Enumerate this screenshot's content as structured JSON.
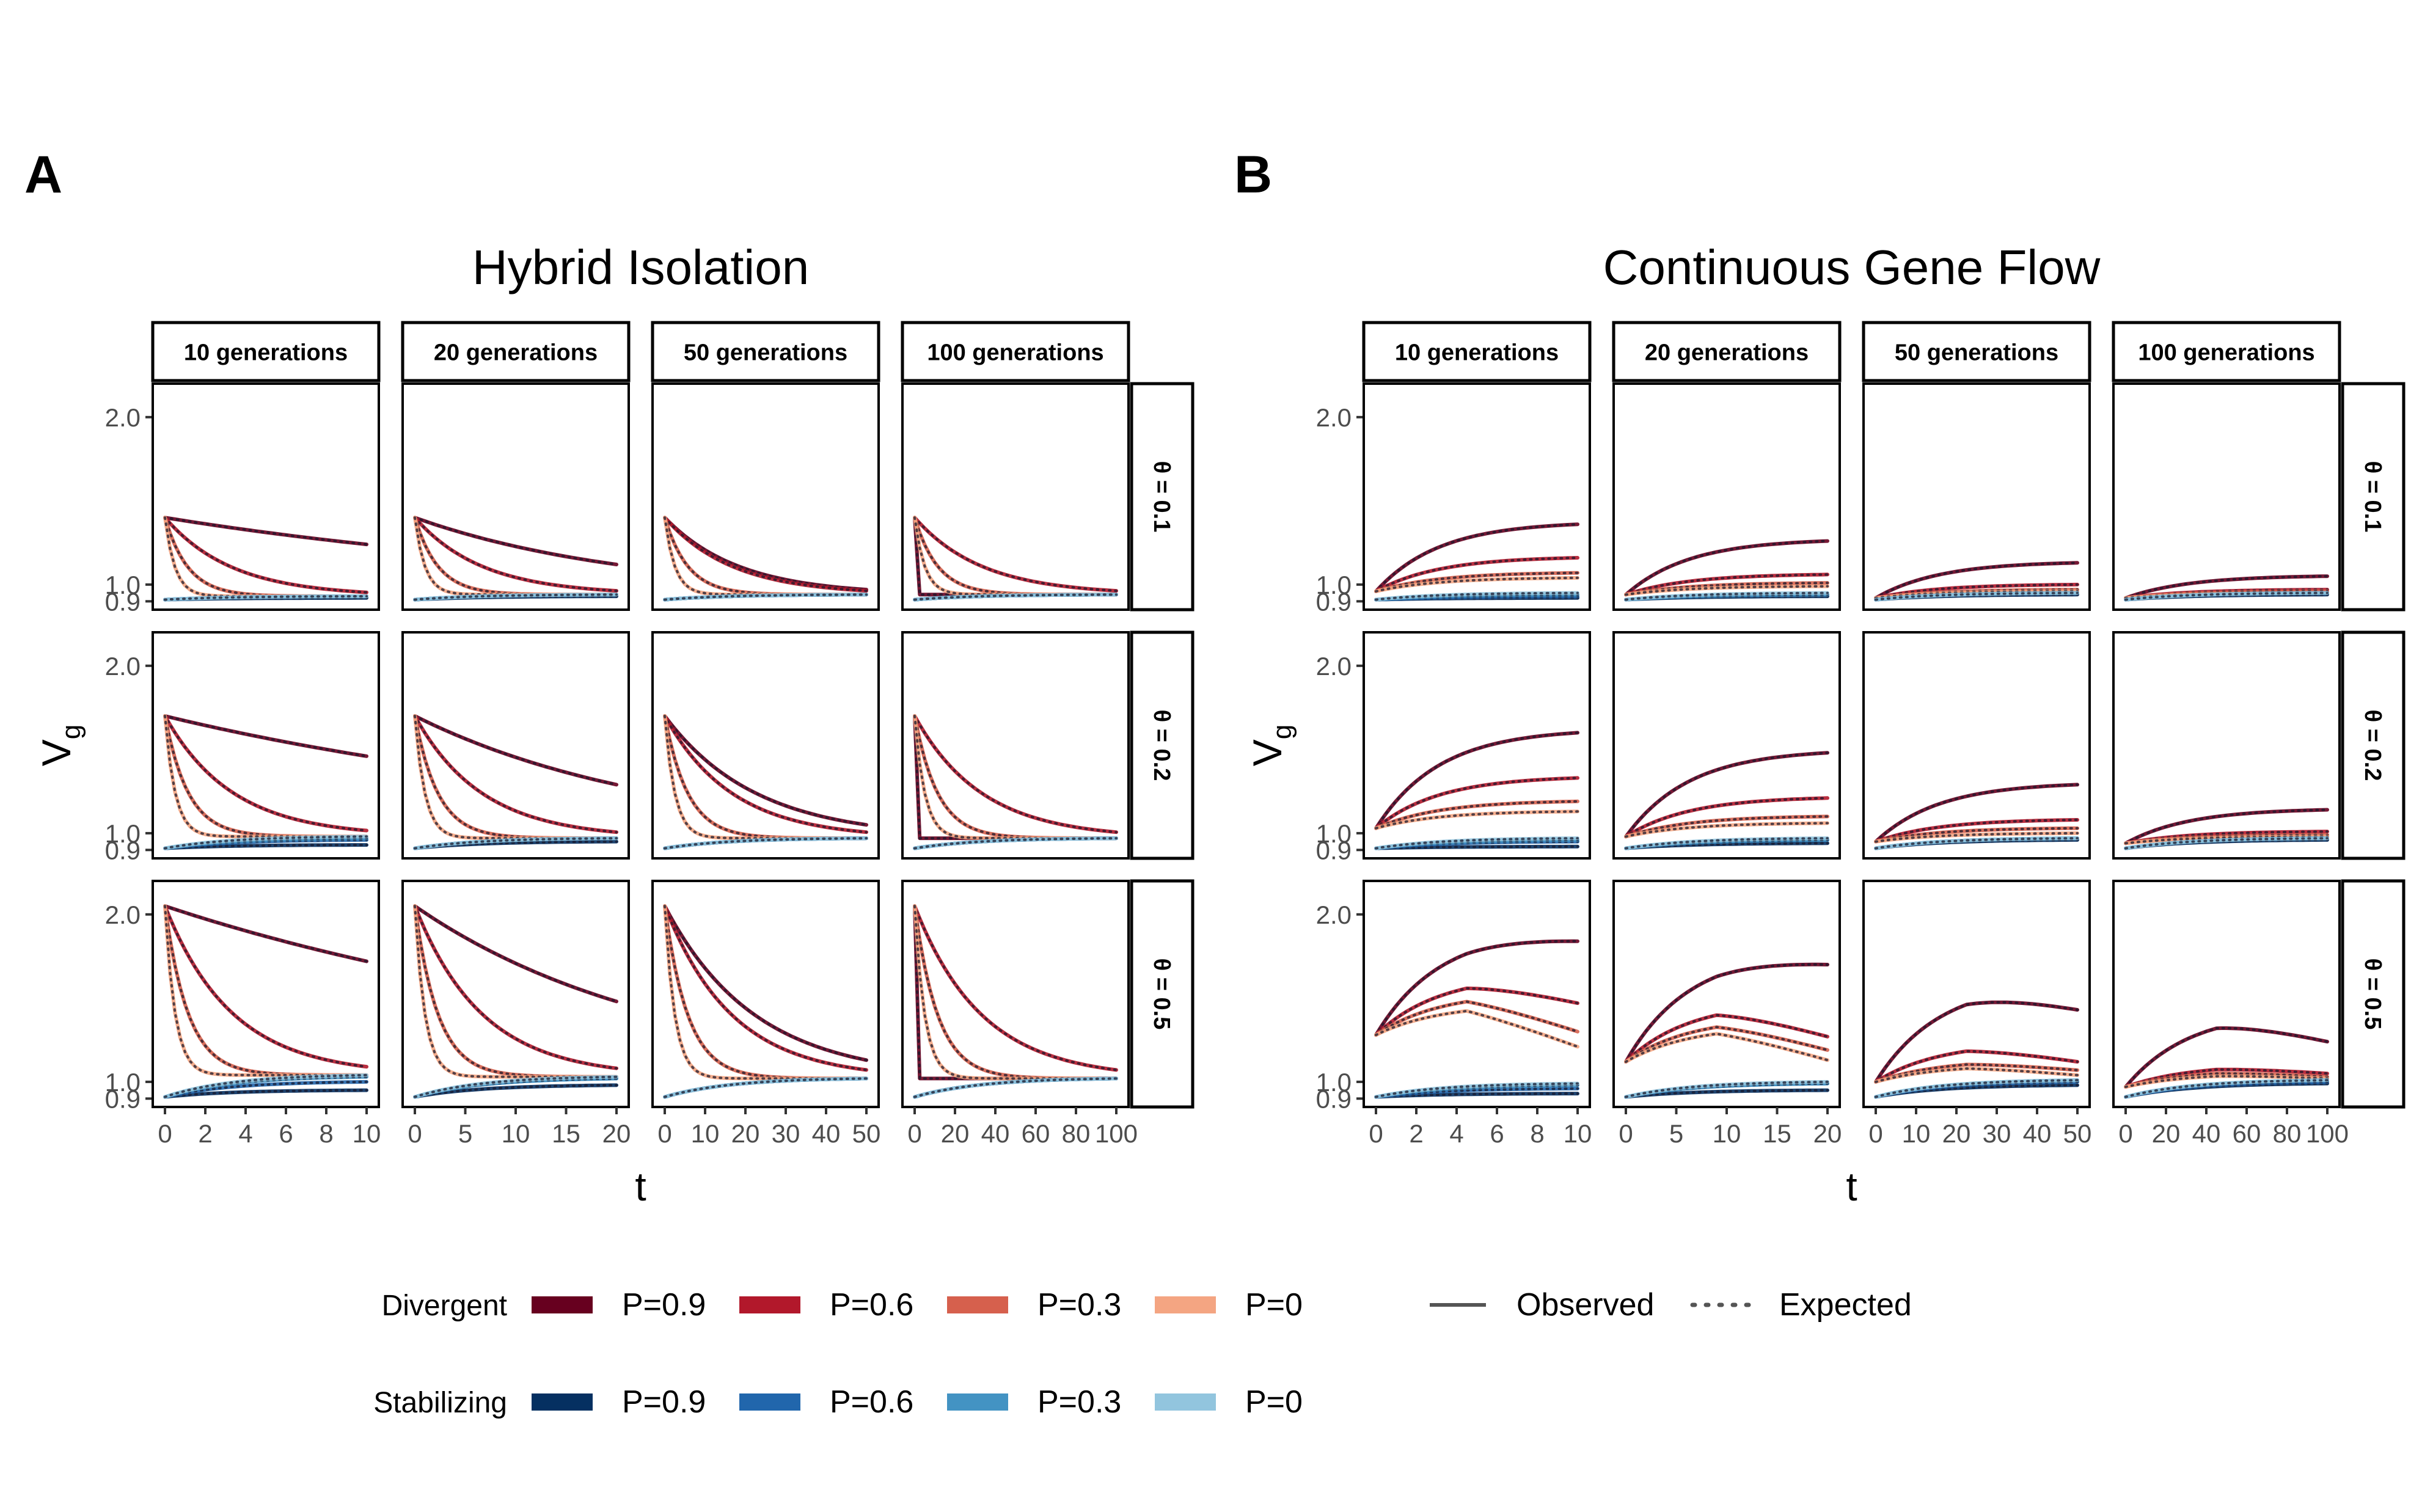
{
  "panel_labels": [
    "A",
    "B"
  ],
  "panel_titles": [
    "Hybrid Isolation",
    "Continuous Gene Flow"
  ],
  "facet_columns": [
    "10 generations",
    "20 generations",
    "50 generations",
    "100 generations"
  ],
  "facet_rows": [
    "θ = 0.1",
    "θ = 0.2",
    "θ = 0.5"
  ],
  "x_label": "t",
  "y_label": "V",
  "y_label_sub": "g",
  "y_ticks": [
    "0.9",
    "1.0",
    "2.0"
  ],
  "x_ticks": [
    [
      "0",
      "2",
      "4",
      "6",
      "8",
      "10"
    ],
    [
      "0",
      "5",
      "10",
      "15",
      "20"
    ],
    [
      "0",
      "10",
      "20",
      "30",
      "40",
      "50"
    ],
    [
      "0",
      "20",
      "40",
      "60",
      "80",
      "100"
    ]
  ],
  "legend": {
    "groups": [
      {
        "title": "Divergent",
        "entries": [
          {
            "label": "P=0.9",
            "color": "#67001f"
          },
          {
            "label": "P=0.6",
            "color": "#b2182b"
          },
          {
            "label": "P=0.3",
            "color": "#d6604d"
          },
          {
            "label": "P=0",
            "color": "#f4a582"
          }
        ]
      },
      {
        "title": "Stabilizing",
        "entries": [
          {
            "label": "P=0.9",
            "color": "#053061"
          },
          {
            "label": "P=0.6",
            "color": "#2166ac"
          },
          {
            "label": "P=0.3",
            "color": "#4393c3"
          },
          {
            "label": "P=0",
            "color": "#92c5de"
          }
        ]
      }
    ],
    "linetypes": [
      {
        "label": "Observed",
        "style": "solid"
      },
      {
        "label": "Expected",
        "style": "dotted"
      }
    ]
  },
  "chart_data": [
    {
      "type": "line",
      "title": "Hybrid Isolation",
      "xlabel": "t",
      "ylabel": "Vg",
      "ylim": [
        0.85,
        2.2
      ],
      "facet_cols": [
        "10 generations",
        "20 generations",
        "50 generations",
        "100 generations"
      ],
      "x_ranges": [
        [
          0,
          10
        ],
        [
          0,
          20
        ],
        [
          0,
          50
        ],
        [
          0,
          100
        ]
      ],
      "facet_rows": [
        "θ = 0.1",
        "θ = 0.2",
        "θ = 0.5"
      ],
      "initial_divergent": [
        1.4,
        1.7,
        2.05
      ],
      "divergent_final": [
        [
          [
            1.24,
            0.99,
            0.95,
            0.94
          ],
          [
            1.12,
            0.95,
            0.94,
            0.94
          ],
          [
            0.97,
            0.94,
            0.94,
            0.94
          ],
          [
            0.94,
            0.94,
            0.94,
            0.94
          ]
        ],
        [
          [
            1.46,
            1.08,
            1.0,
            0.99
          ],
          [
            1.29,
            1.0,
            0.98,
            0.97
          ],
          [
            1.05,
            0.97,
            0.97,
            0.97
          ],
          [
            0.97,
            0.97,
            0.97,
            0.97
          ]
        ],
        [
          [
            1.72,
            1.16,
            1.05,
            1.03
          ],
          [
            1.48,
            1.05,
            1.02,
            1.02
          ],
          [
            1.13,
            1.02,
            1.02,
            1.02
          ],
          [
            1.02,
            1.02,
            1.02,
            1.02
          ]
        ]
      ],
      "stabilizing_initial": 0.91,
      "stabilizing_final": [
        [
          [
            0.92,
            0.93,
            0.93,
            0.93
          ],
          [
            0.93,
            0.94,
            0.94,
            0.94
          ],
          [
            0.94,
            0.94,
            0.94,
            0.94
          ],
          [
            0.94,
            0.94,
            0.94,
            0.94
          ]
        ],
        [
          [
            0.93,
            0.96,
            0.97,
            0.98
          ],
          [
            0.95,
            0.97,
            0.97,
            0.97
          ],
          [
            0.97,
            0.97,
            0.97,
            0.97
          ],
          [
            0.97,
            0.97,
            0.97,
            0.97
          ]
        ],
        [
          [
            0.95,
            1.0,
            1.03,
            1.04
          ],
          [
            0.98,
            1.02,
            1.02,
            1.03
          ],
          [
            1.02,
            1.02,
            1.02,
            1.02
          ],
          [
            1.02,
            1.02,
            1.02,
            1.02
          ]
        ]
      ],
      "series": [
        {
          "name": "Divergent P=0.9"
        },
        {
          "name": "Divergent P=0.6"
        },
        {
          "name": "Divergent P=0.3"
        },
        {
          "name": "Divergent P=0"
        },
        {
          "name": "Stabilizing P=0.9"
        },
        {
          "name": "Stabilizing P=0.6"
        },
        {
          "name": "Stabilizing P=0.3"
        },
        {
          "name": "Stabilizing P=0"
        }
      ]
    },
    {
      "type": "line",
      "title": "Continuous Gene Flow",
      "xlabel": "t",
      "ylabel": "Vg",
      "ylim": [
        0.85,
        2.2
      ],
      "facet_cols": [
        "10 generations",
        "20 generations",
        "50 generations",
        "100 generations"
      ],
      "x_ranges": [
        [
          0,
          10
        ],
        [
          0,
          20
        ],
        [
          0,
          50
        ],
        [
          0,
          100
        ]
      ],
      "facet_rows": [
        "θ = 0.1",
        "θ = 0.2",
        "θ = 0.5"
      ],
      "initial_divergent": [
        [
          0.96,
          0.94,
          0.92,
          0.92
        ],
        [
          1.03,
          0.98,
          0.95,
          0.94
        ],
        [
          1.28,
          1.12,
          1.0,
          0.97
        ]
      ],
      "divergent_peak": [
        [
          [
            1.36,
            1.16,
            1.07,
            1.04
          ],
          [
            1.26,
            1.06,
            1.01,
            0.99
          ],
          [
            1.13,
            1.0,
            0.97,
            0.96
          ],
          [
            1.05,
            0.97,
            0.96,
            0.95
          ]
        ],
        [
          [
            1.6,
            1.33,
            1.19,
            1.13
          ],
          [
            1.48,
            1.21,
            1.1,
            1.06
          ],
          [
            1.29,
            1.08,
            1.03,
            1.0
          ],
          [
            1.14,
            1.01,
            0.99,
            0.98
          ]
        ],
        [
          [
            1.89,
            1.63,
            1.53,
            1.46
          ],
          [
            1.76,
            1.47,
            1.38,
            1.33
          ],
          [
            1.58,
            1.23,
            1.13,
            1.1
          ],
          [
            1.41,
            1.1,
            1.07,
            1.05
          ]
        ]
      ],
      "divergent_final": [
        [
          [
            1.36,
            1.16,
            1.07,
            1.04
          ],
          [
            1.26,
            1.06,
            1.01,
            0.99
          ],
          [
            1.13,
            1.0,
            0.97,
            0.96
          ],
          [
            1.05,
            0.97,
            0.96,
            0.95
          ]
        ],
        [
          [
            1.6,
            1.33,
            1.19,
            1.13
          ],
          [
            1.48,
            1.21,
            1.1,
            1.06
          ],
          [
            1.29,
            1.08,
            1.03,
            1.0
          ],
          [
            1.14,
            1.01,
            0.99,
            0.98
          ]
        ],
        [
          [
            1.84,
            1.47,
            1.3,
            1.21
          ],
          [
            1.7,
            1.27,
            1.19,
            1.13
          ],
          [
            1.43,
            1.12,
            1.07,
            1.04
          ],
          [
            1.24,
            1.05,
            1.03,
            1.02
          ]
        ]
      ],
      "stabilizing_initial": 0.91,
      "stabilizing_final": [
        [
          [
            0.92,
            0.93,
            0.94,
            0.95
          ],
          [
            0.93,
            0.94,
            0.94,
            0.95
          ],
          [
            0.94,
            0.95,
            0.95,
            0.95
          ],
          [
            0.94,
            0.95,
            0.95,
            0.95
          ]
        ],
        [
          [
            0.92,
            0.95,
            0.96,
            0.97
          ],
          [
            0.94,
            0.96,
            0.96,
            0.97
          ],
          [
            0.96,
            0.97,
            0.97,
            0.97
          ],
          [
            0.96,
            0.97,
            0.97,
            0.97
          ]
        ],
        [
          [
            0.93,
            0.96,
            0.98,
            0.99
          ],
          [
            0.95,
            0.99,
            0.99,
            1.0
          ],
          [
            0.98,
            1.0,
            1.01,
            1.01
          ],
          [
            0.99,
            1.0,
            1.01,
            1.01
          ]
        ]
      ],
      "series": [
        {
          "name": "Divergent P=0.9"
        },
        {
          "name": "Divergent P=0.6"
        },
        {
          "name": "Divergent P=0.3"
        },
        {
          "name": "Divergent P=0"
        },
        {
          "name": "Stabilizing P=0.9"
        },
        {
          "name": "Stabilizing P=0.6"
        },
        {
          "name": "Stabilizing P=0.3"
        },
        {
          "name": "Stabilizing P=0"
        }
      ]
    }
  ]
}
